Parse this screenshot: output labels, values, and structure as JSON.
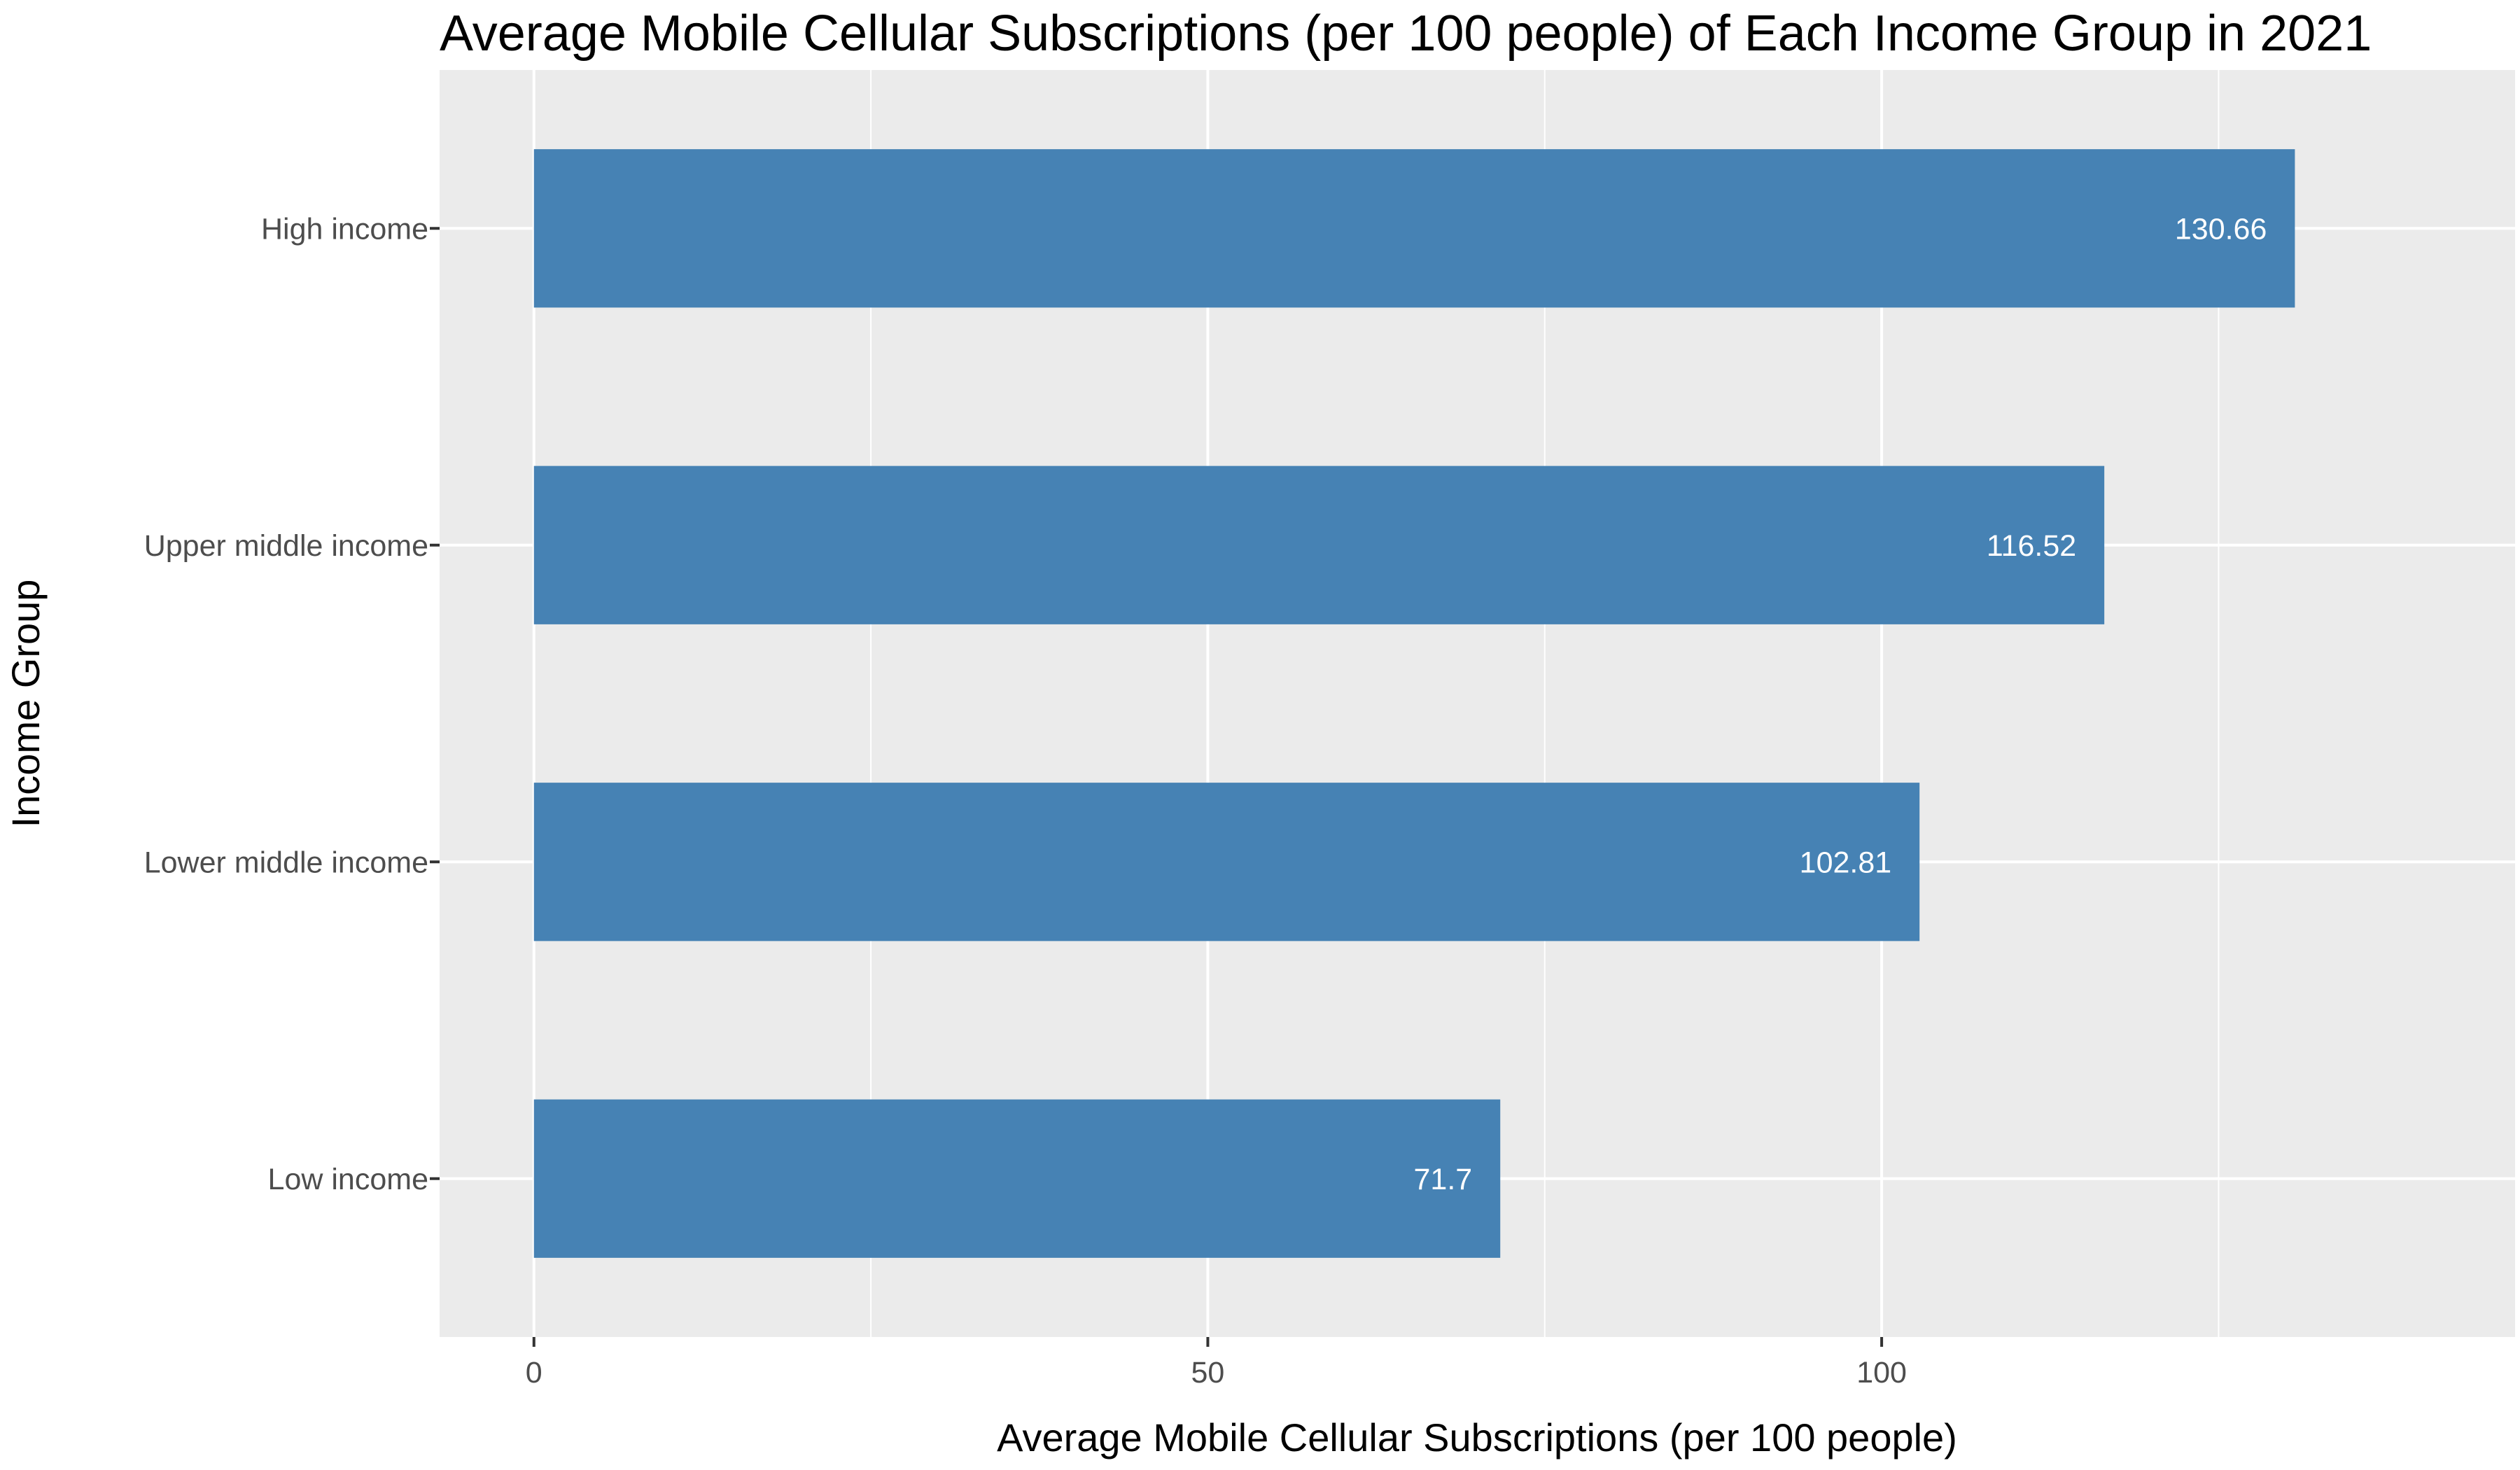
{
  "chart_data": {
    "type": "bar",
    "orientation": "horizontal",
    "title": "Average Mobile Cellular Subscriptions (per 100 people) of Each Income Group in 2021",
    "xlabel": "Average Mobile Cellular Subscriptions (per 100 people)",
    "ylabel": "Income Group",
    "categories": [
      "High income",
      "Upper middle income",
      "Lower middle income",
      "Low income"
    ],
    "values": [
      130.66,
      116.52,
      102.81,
      71.7
    ],
    "value_labels": [
      "130.66",
      "116.52",
      "102.81",
      "71.7"
    ],
    "xlim": [
      -7,
      147
    ],
    "x_ticks": [
      0,
      50,
      100
    ],
    "x_tick_labels": [
      "0",
      "50",
      "100"
    ],
    "x_minor_ticks": [
      25,
      75,
      125
    ],
    "grid": true,
    "colors": {
      "bar": "#4682b4",
      "panel": "#ebebeb",
      "grid": "#ffffff",
      "tick_text": "#4d4d4d",
      "bar_text": "#ffffff"
    }
  }
}
